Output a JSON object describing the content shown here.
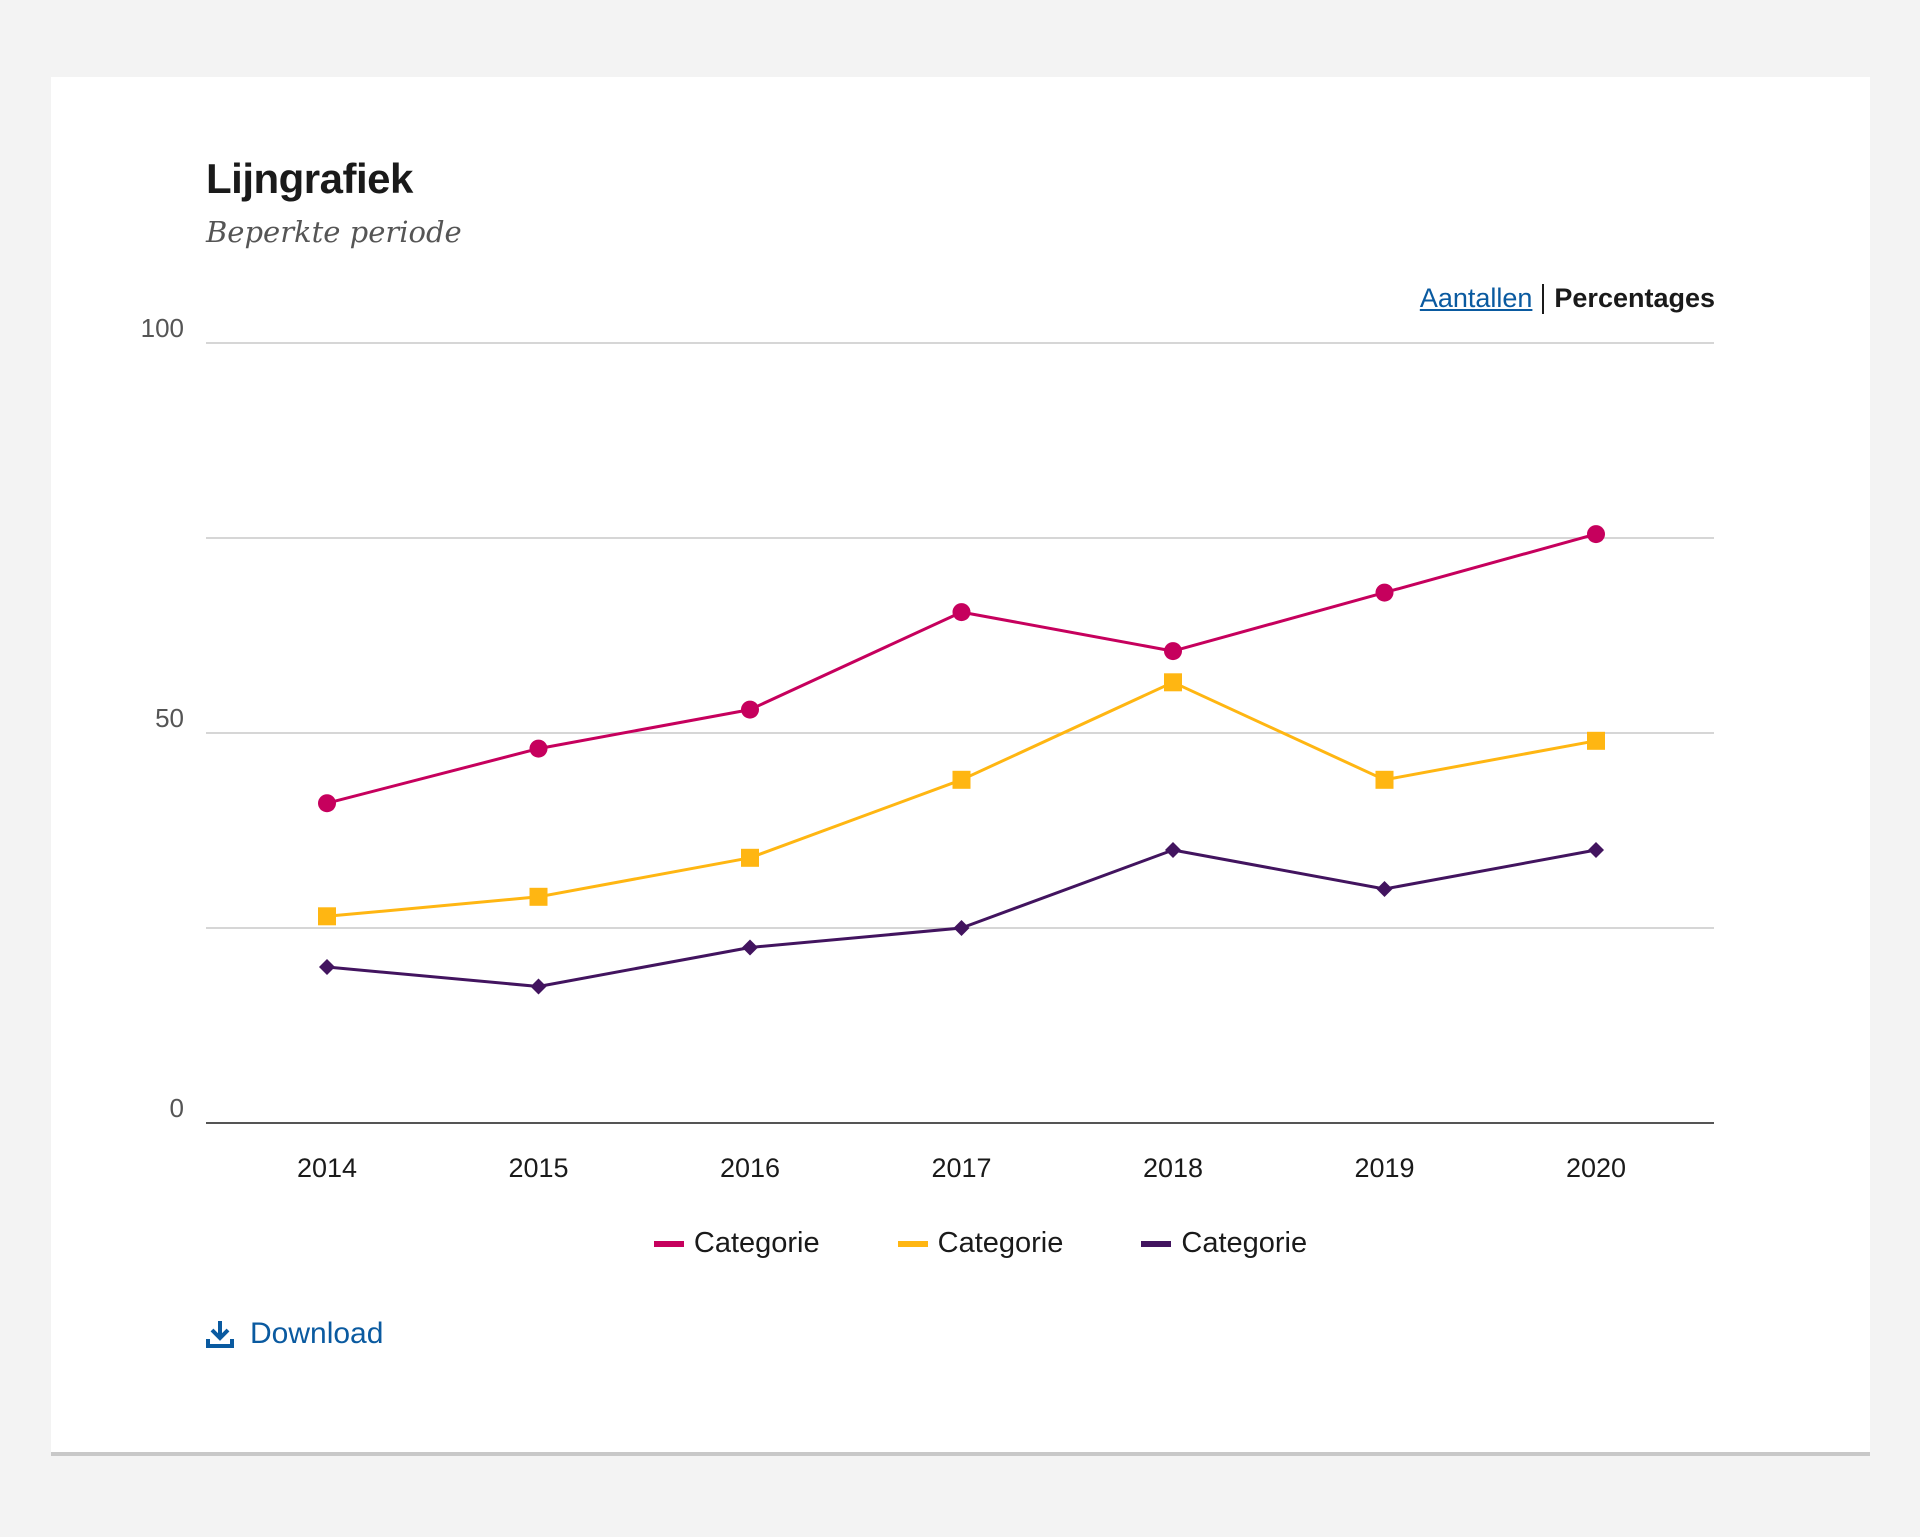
{
  "card": {
    "title": "Lijngrafiek",
    "subtitle": "Beperkte periode"
  },
  "toggle": {
    "counts_label": "Aantallen",
    "percentages_label": "Percentages",
    "active": "percentages"
  },
  "download": {
    "label": "Download",
    "icon": "download-icon"
  },
  "colors": {
    "grid": "#c8c8c8",
    "axis": "#555555",
    "link": "#0a5aa0"
  },
  "chart_data": {
    "type": "line",
    "title": "Lijngrafiek",
    "subtitle": "Beperkte periode",
    "xlabel": "",
    "ylabel": "",
    "categories": [
      "2014",
      "2015",
      "2016",
      "2017",
      "2018",
      "2019",
      "2020"
    ],
    "ylim": [
      0,
      100
    ],
    "y_ticks": [
      0,
      50,
      100
    ],
    "y_gridlines": [
      25,
      50,
      75,
      100
    ],
    "grid": true,
    "legend_position": "bottom",
    "series": [
      {
        "name": "Categorie",
        "color": "#c6005d",
        "marker": "circle",
        "values": [
          41,
          48,
          53,
          65.5,
          60.5,
          68,
          75.5
        ]
      },
      {
        "name": "Categorie",
        "color": "#ffb612",
        "marker": "square",
        "values": [
          26.5,
          29,
          34,
          44,
          56.5,
          44,
          49
        ]
      },
      {
        "name": "Categorie",
        "color": "#42145f",
        "marker": "diamond",
        "values": [
          20,
          17.5,
          22.5,
          25,
          35,
          30,
          35
        ]
      }
    ]
  }
}
